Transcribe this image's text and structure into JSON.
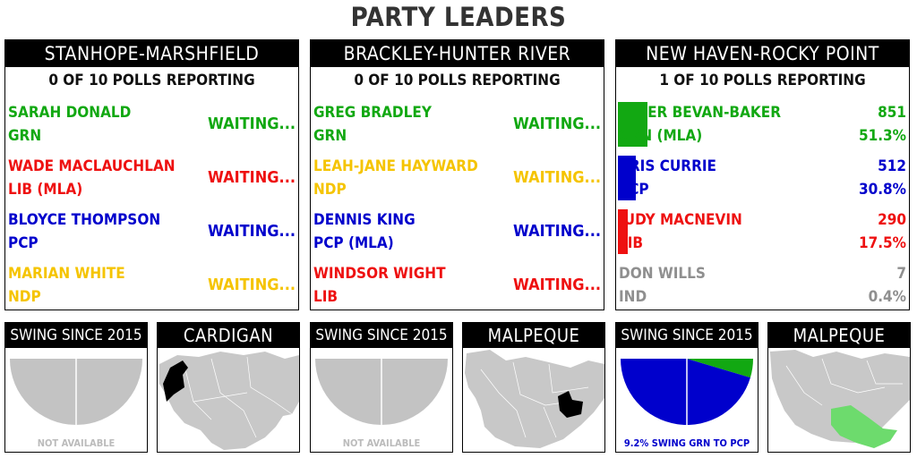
{
  "title": "PARTY LEADERS",
  "colors": {
    "GRN": "#12a812",
    "LIB": "#ee1111",
    "PCP": "#0000cc",
    "NDP": "#f5c400",
    "IND": "#8f8f8f",
    "grey": "#c3c3c3"
  },
  "ridings": [
    {
      "name": "STANHOPE-MARSHFIELD",
      "polls": "0 OF 10 POLLS REPORTING",
      "candidates": [
        {
          "name": "SARAH DONALD",
          "party": "GRN",
          "color": "GRN",
          "status": "WAITING..."
        },
        {
          "name": "WADE MACLAUCHLAN",
          "party": "LIB (MLA)",
          "color": "LIB",
          "status": "WAITING..."
        },
        {
          "name": "BLOYCE THOMPSON",
          "party": "PCP",
          "color": "PCP",
          "status": "WAITING..."
        },
        {
          "name": "MARIAN WHITE",
          "party": "NDP",
          "color": "NDP",
          "status": "WAITING..."
        }
      ],
      "swing": {
        "header": "SWING SINCE 2015",
        "label": "NOT AVAILABLE",
        "available": false
      },
      "map": {
        "header": "CARDIGAN"
      }
    },
    {
      "name": "BRACKLEY-HUNTER RIVER",
      "polls": "0 OF 10 POLLS REPORTING",
      "candidates": [
        {
          "name": "GREG BRADLEY",
          "party": "GRN",
          "color": "GRN",
          "status": "WAITING..."
        },
        {
          "name": "LEAH-JANE HAYWARD",
          "party": "NDP",
          "color": "NDP",
          "status": "WAITING..."
        },
        {
          "name": "DENNIS KING",
          "party": "PCP (MLA)",
          "color": "PCP",
          "status": "WAITING..."
        },
        {
          "name": "WINDSOR WIGHT",
          "party": "LIB",
          "color": "LIB",
          "status": "WAITING..."
        }
      ],
      "swing": {
        "header": "SWING SINCE 2015",
        "label": "NOT AVAILABLE",
        "available": false
      },
      "map": {
        "header": "MALPEQUE"
      }
    },
    {
      "name": "NEW HAVEN-ROCKY POINT",
      "polls": "1 OF 10 POLLS REPORTING",
      "candidates": [
        {
          "name": "PETER BEVAN-BAKER",
          "party": "GRN (MLA)",
          "color": "GRN",
          "votes": "851",
          "pct": "51.3%",
          "share": 0.513
        },
        {
          "name": "KRIS CURRIE",
          "party": "PCP",
          "color": "PCP",
          "votes": "512",
          "pct": "30.8%",
          "share": 0.308
        },
        {
          "name": "JUDY MACNEVIN",
          "party": "LIB",
          "color": "LIB",
          "votes": "290",
          "pct": "17.5%",
          "share": 0.175
        },
        {
          "name": "DON WILLS",
          "party": "IND",
          "color": "IND",
          "votes": "7",
          "pct": "0.4%",
          "share": 0.004
        }
      ],
      "swing": {
        "header": "SWING SINCE 2015",
        "label": "9.2% SWING GRN TO PCP",
        "available": true,
        "swing_pct": 9.2,
        "from": "GRN",
        "to": "PCP"
      },
      "map": {
        "header": "MALPEQUE"
      }
    }
  ]
}
